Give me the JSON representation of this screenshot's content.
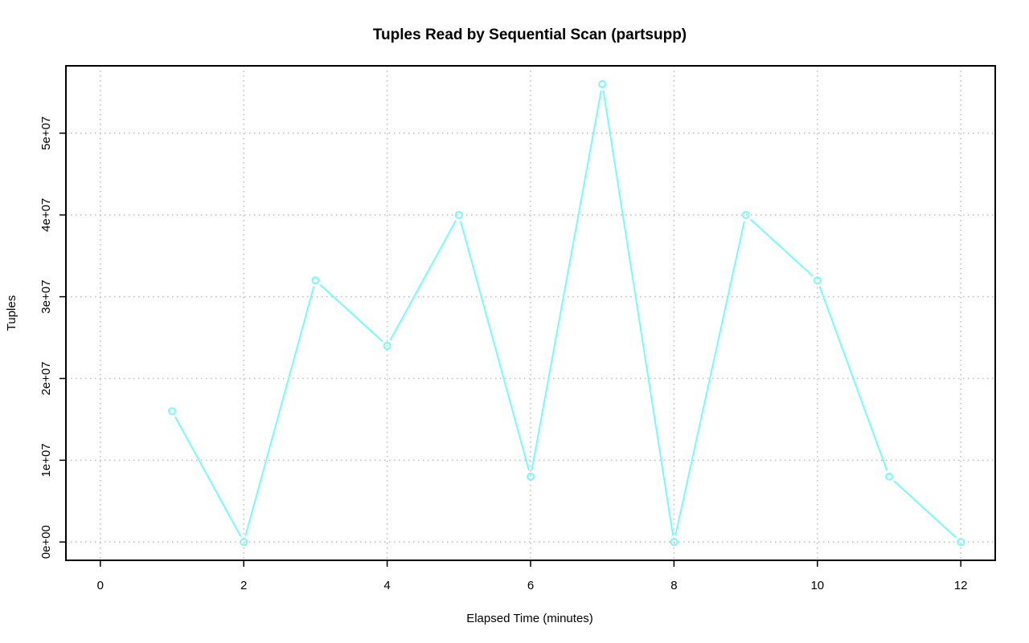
{
  "chart_data": {
    "type": "line",
    "title": "Tuples Read by Sequential Scan (partsupp)",
    "xlabel": "Elapsed Time (minutes)",
    "ylabel": "Tuples",
    "xlim": [
      0,
      12
    ],
    "ylim": [
      0,
      56000000
    ],
    "x_ticks": [
      0,
      2,
      4,
      6,
      8,
      10,
      12
    ],
    "x_tick_labels": [
      "0",
      "2",
      "4",
      "6",
      "8",
      "10",
      "12"
    ],
    "y_ticks": [
      0,
      10000000,
      20000000,
      30000000,
      40000000,
      50000000
    ],
    "y_tick_labels": [
      "0e+00",
      "1e+07",
      "2e+07",
      "3e+07",
      "4e+07",
      "5e+07"
    ],
    "grid": true,
    "series": [
      {
        "color": "#66ffff",
        "marker": "open-circle",
        "x": [
          1,
          2,
          3,
          4,
          5,
          6,
          7,
          8,
          9,
          10,
          11,
          12
        ],
        "y": [
          16000000,
          0,
          32000000,
          24000000,
          40000000,
          8000000,
          56000000,
          0,
          40000000,
          32000000,
          8000000,
          0
        ]
      }
    ]
  }
}
